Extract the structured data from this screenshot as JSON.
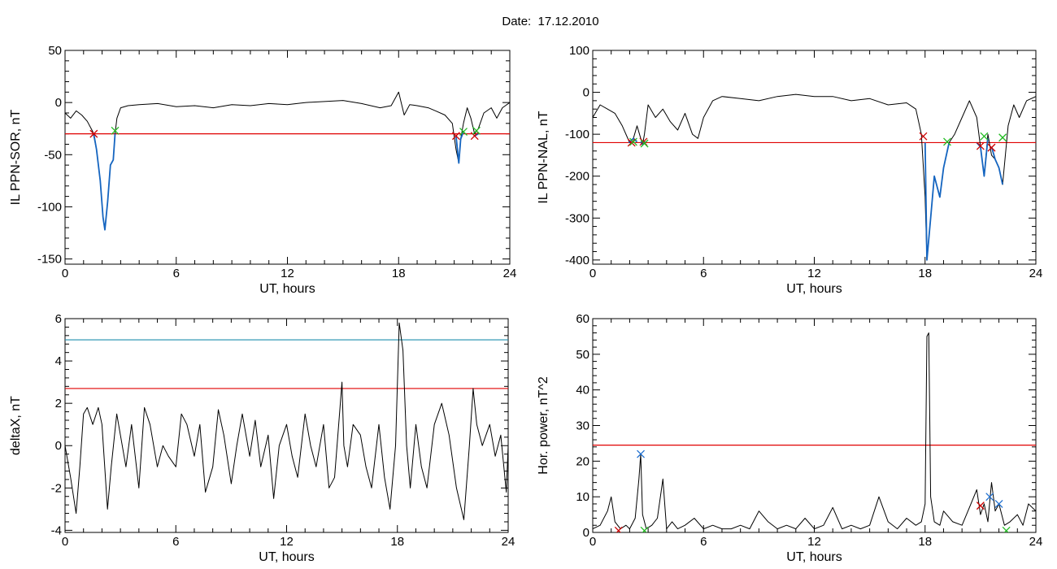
{
  "title": "Date:  17.12.2010",
  "colors": {
    "data": "#000000",
    "threshold": "#e00000",
    "threshold2": "#1f8fae",
    "event": "#1565c0",
    "start_marker": "#cc0000",
    "end_marker": "#22bb22",
    "peak_marker": "#1e6fd0"
  },
  "chart_data": [
    {
      "type": "line",
      "xlabel": "UT, hours",
      "ylabel": "IL PPN-SOR, nT",
      "xlim": [
        0,
        24
      ],
      "ylim": [
        -155,
        50
      ],
      "xticks": [
        0,
        6,
        12,
        18,
        24
      ],
      "yticks": [
        50,
        0,
        -50,
        -100,
        -150
      ],
      "thresholds": [
        {
          "value": -30,
          "color": "#e00000"
        }
      ],
      "series": [
        {
          "role": "data",
          "color": "#000000",
          "x": [
            0,
            0.3,
            0.6,
            0.9,
            1.2,
            1.5,
            1.7,
            1.9,
            2.05,
            2.15,
            2.3,
            2.45,
            2.6,
            2.7,
            2.8,
            3.0,
            3.4,
            4,
            5,
            6,
            7,
            8,
            9,
            10,
            11,
            12,
            13,
            14,
            15,
            16,
            17,
            17.6,
            18,
            18.3,
            18.6,
            19,
            19.6,
            20,
            20.5,
            20.9,
            21.1,
            21.25,
            21.35,
            21.5,
            21.7,
            21.9,
            22.1,
            22.3,
            22.6,
            23,
            23.3,
            23.6,
            24
          ],
          "y": [
            -10,
            -15,
            -8,
            -12,
            -18,
            -28,
            -45,
            -75,
            -110,
            -122,
            -95,
            -60,
            -55,
            -30,
            -15,
            -5,
            -3,
            -2,
            -1,
            -4,
            -3,
            -5,
            -2,
            -3,
            -1,
            -2,
            0,
            1,
            2,
            -1,
            -5,
            -3,
            10,
            -12,
            -2,
            -3,
            -5,
            -8,
            -12,
            -20,
            -45,
            -58,
            -35,
            -20,
            -5,
            -15,
            -30,
            -25,
            -10,
            -5,
            -15,
            -5,
            0
          ]
        },
        {
          "role": "event",
          "color": "#1565c0",
          "x": [
            1.55,
            1.7,
            1.9,
            2.05,
            2.15,
            2.3,
            2.45,
            2.6,
            2.7
          ],
          "y": [
            -30,
            -45,
            -75,
            -110,
            -122,
            -95,
            -60,
            -55,
            -30
          ]
        },
        {
          "role": "event",
          "color": "#1565c0",
          "x": [
            21.1,
            21.25,
            21.35,
            21.5
          ],
          "y": [
            -32,
            -58,
            -35,
            -28
          ]
        },
        {
          "role": "event",
          "color": "#1565c0",
          "x": [
            22.1,
            22.3
          ],
          "y": [
            -32,
            -30
          ]
        }
      ],
      "markers": [
        {
          "x": 1.55,
          "y": -30,
          "kind": "start"
        },
        {
          "x": 2.7,
          "y": -27,
          "kind": "end"
        },
        {
          "x": 21.1,
          "y": -32,
          "kind": "start"
        },
        {
          "x": 21.5,
          "y": -28,
          "kind": "end"
        },
        {
          "x": 22.1,
          "y": -32,
          "kind": "start"
        },
        {
          "x": 22.2,
          "y": -27,
          "kind": "end"
        }
      ]
    },
    {
      "type": "line",
      "xlabel": "UT, hours",
      "ylabel": "IL PPN-NAL, nT",
      "xlim": [
        0,
        24
      ],
      "ylim": [
        -410,
        100
      ],
      "xticks": [
        0,
        6,
        12,
        18,
        24
      ],
      "yticks": [
        100,
        0,
        -100,
        -200,
        -300,
        -400
      ],
      "thresholds": [
        {
          "value": -120,
          "color": "#e00000"
        }
      ],
      "series": [
        {
          "role": "data",
          "color": "#000000",
          "x": [
            0,
            0.4,
            0.8,
            1.2,
            1.6,
            2.0,
            2.2,
            2.4,
            2.7,
            2.8,
            3.0,
            3.4,
            3.8,
            4.2,
            4.6,
            5.0,
            5.4,
            5.7,
            6,
            6.5,
            7,
            8,
            9,
            10,
            11,
            12,
            13,
            14,
            15,
            16,
            17,
            17.5,
            17.8,
            18.0,
            18.1,
            18.3,
            18.5,
            18.8,
            19.0,
            19.3,
            19.6,
            20,
            20.4,
            20.8,
            21.0,
            21.2,
            21.4,
            21.6,
            21.8,
            22.0,
            22.2,
            22.5,
            22.8,
            23.1,
            23.5,
            24
          ],
          "y": [
            -60,
            -30,
            -40,
            -50,
            -80,
            -120,
            -110,
            -80,
            -125,
            -100,
            -30,
            -60,
            -40,
            -70,
            -90,
            -50,
            -100,
            -110,
            -60,
            -20,
            -10,
            -15,
            -20,
            -10,
            -5,
            -10,
            -10,
            -20,
            -15,
            -30,
            -25,
            -40,
            -100,
            -250,
            -400,
            -300,
            -200,
            -250,
            -180,
            -120,
            -100,
            -60,
            -20,
            -60,
            -130,
            -200,
            -100,
            -150,
            -160,
            -180,
            -220,
            -80,
            -30,
            -60,
            -20,
            -10
          ]
        },
        {
          "role": "event",
          "color": "#1565c0",
          "x": [
            1.95,
            2.2,
            2.4
          ],
          "y": [
            -120,
            -110,
            -118
          ]
        },
        {
          "role": "event",
          "color": "#1565c0",
          "x": [
            2.6,
            2.7,
            2.85
          ],
          "y": [
            -118,
            -125,
            -118
          ]
        },
        {
          "role": "event",
          "color": "#1565c0",
          "x": [
            18.0,
            18.1,
            18.3,
            18.5,
            18.8,
            19.0,
            19.3
          ],
          "y": [
            -120,
            -400,
            -300,
            -200,
            -250,
            -180,
            -120
          ]
        },
        {
          "role": "event",
          "color": "#1565c0",
          "x": [
            20.8,
            21.0,
            21.2,
            21.4
          ],
          "y": [
            -120,
            -130,
            -200,
            -110
          ]
        },
        {
          "role": "event",
          "color": "#1565c0",
          "x": [
            21.6,
            21.8,
            22.0,
            22.2
          ],
          "y": [
            -130,
            -160,
            -180,
            -220
          ]
        }
      ],
      "markers": [
        {
          "x": 2.1,
          "y": -120,
          "kind": "start"
        },
        {
          "x": 2.2,
          "y": -118,
          "kind": "end"
        },
        {
          "x": 2.75,
          "y": -118,
          "kind": "start"
        },
        {
          "x": 2.8,
          "y": -122,
          "kind": "end"
        },
        {
          "x": 17.9,
          "y": -105,
          "kind": "start"
        },
        {
          "x": 19.2,
          "y": -118,
          "kind": "end"
        },
        {
          "x": 21.0,
          "y": -128,
          "kind": "start"
        },
        {
          "x": 21.2,
          "y": -105,
          "kind": "end"
        },
        {
          "x": 21.6,
          "y": -132,
          "kind": "start"
        },
        {
          "x": 22.2,
          "y": -108,
          "kind": "end"
        }
      ]
    },
    {
      "type": "line",
      "xlabel": "UT, hours",
      "ylabel": "deltaX, nT",
      "xlim": [
        0,
        24
      ],
      "ylim": [
        -4.1,
        6
      ],
      "xticks": [
        0,
        6,
        12,
        18,
        24
      ],
      "yticks": [
        6,
        4,
        2,
        0,
        -2,
        -4
      ],
      "thresholds": [
        {
          "value": 5.0,
          "color": "#1f8fae"
        },
        {
          "value": 2.7,
          "color": "#e00000"
        }
      ],
      "series": [
        {
          "role": "data",
          "color": "#000000",
          "x": [
            0,
            0.3,
            0.6,
            0.8,
            1.0,
            1.2,
            1.5,
            1.8,
            2.0,
            2.3,
            2.5,
            2.8,
            3.0,
            3.3,
            3.6,
            4.0,
            4.3,
            4.6,
            5.0,
            5.3,
            5.6,
            6.0,
            6.3,
            6.6,
            7.0,
            7.3,
            7.6,
            8.0,
            8.3,
            8.6,
            9.0,
            9.3,
            9.6,
            10.0,
            10.3,
            10.6,
            11.0,
            11.3,
            11.6,
            12.0,
            12.3,
            12.6,
            13.0,
            13.3,
            13.6,
            14.0,
            14.3,
            14.6,
            15.0,
            15.1,
            15.3,
            15.6,
            16.0,
            16.3,
            16.6,
            17.0,
            17.3,
            17.6,
            17.9,
            18.1,
            18.3,
            18.5,
            18.7,
            19.0,
            19.3,
            19.6,
            20.0,
            20.4,
            20.8,
            21.2,
            21.6,
            21.9,
            22.1,
            22.3,
            22.6,
            23.0,
            23.3,
            23.6,
            23.9,
            24
          ],
          "y": [
            0,
            -1.5,
            -3.2,
            -1,
            1.5,
            1.8,
            1,
            1.8,
            1,
            -3,
            -1,
            1.5,
            0.5,
            -1,
            1,
            -2,
            1.8,
            1,
            -1,
            0,
            -0.5,
            -1,
            1.5,
            1,
            -0.5,
            1,
            -2.2,
            -1,
            1.7,
            0.5,
            -1.8,
            0,
            1.5,
            -0.5,
            1.2,
            -1,
            0.5,
            -2.5,
            0,
            1,
            -0.5,
            -1.5,
            1.5,
            0,
            -1,
            1,
            -2,
            -1.5,
            3,
            0,
            -1,
            1,
            0.5,
            -1,
            -2,
            1,
            -1.5,
            -3,
            0,
            5.8,
            4.5,
            0,
            -2,
            1,
            -1,
            -2,
            1,
            2,
            0.5,
            -2,
            -3.5,
            0,
            2.7,
            1,
            0,
            1,
            -0.5,
            0.5,
            -2.2,
            0
          ]
        }
      ],
      "markers": []
    },
    {
      "type": "line",
      "xlabel": "UT, hours",
      "ylabel": "Hor. power, nT^2",
      "xlim": [
        0,
        24
      ],
      "ylim": [
        0,
        60
      ],
      "xticks": [
        0,
        6,
        12,
        18,
        24
      ],
      "yticks": [
        60,
        50,
        40,
        30,
        20,
        10,
        0
      ],
      "thresholds": [
        {
          "value": 24.5,
          "color": "#e00000"
        }
      ],
      "series": [
        {
          "role": "data",
          "color": "#000000",
          "x": [
            0,
            0.4,
            0.8,
            1.0,
            1.2,
            1.5,
            1.8,
            2.0,
            2.3,
            2.5,
            2.6,
            2.7,
            2.9,
            3.2,
            3.5,
            3.8,
            4.0,
            4.3,
            4.6,
            5.0,
            5.5,
            6,
            6.5,
            7,
            7.5,
            8,
            8.5,
            9,
            9.5,
            10,
            10.5,
            11,
            11.5,
            12,
            12.5,
            13,
            13.5,
            14,
            14.5,
            15,
            15.5,
            16,
            16.5,
            17,
            17.5,
            17.8,
            18.0,
            18.1,
            18.2,
            18.3,
            18.5,
            18.8,
            19.0,
            19.5,
            20.0,
            20.4,
            20.8,
            21.0,
            21.2,
            21.4,
            21.6,
            21.8,
            22.0,
            22.3,
            22.6,
            23.0,
            23.3,
            23.6,
            24
          ],
          "y": [
            1,
            2,
            6,
            10,
            3,
            1,
            2,
            1,
            4,
            15,
            22,
            5,
            1,
            2,
            4,
            15,
            1,
            3,
            1,
            2,
            4,
            1,
            2,
            1,
            1,
            2,
            1,
            6,
            3,
            1,
            2,
            1,
            4,
            1,
            2,
            7,
            1,
            2,
            1,
            2,
            10,
            3,
            1,
            4,
            2,
            3,
            8,
            55,
            56,
            10,
            3,
            2,
            6,
            3,
            2,
            7,
            12,
            5,
            8,
            3,
            14,
            6,
            8,
            2,
            3,
            5,
            2,
            8,
            6
          ]
        }
      ],
      "markers": [
        {
          "x": 1.4,
          "y": 0.5,
          "kind": "start"
        },
        {
          "x": 2.6,
          "y": 22,
          "kind": "peak"
        },
        {
          "x": 2.8,
          "y": 0.5,
          "kind": "end"
        },
        {
          "x": 21.0,
          "y": 7.5,
          "kind": "start"
        },
        {
          "x": 21.5,
          "y": 10,
          "kind": "peak"
        },
        {
          "x": 22.0,
          "y": 8,
          "kind": "peak"
        },
        {
          "x": 22.4,
          "y": 0.5,
          "kind": "end"
        }
      ]
    }
  ]
}
